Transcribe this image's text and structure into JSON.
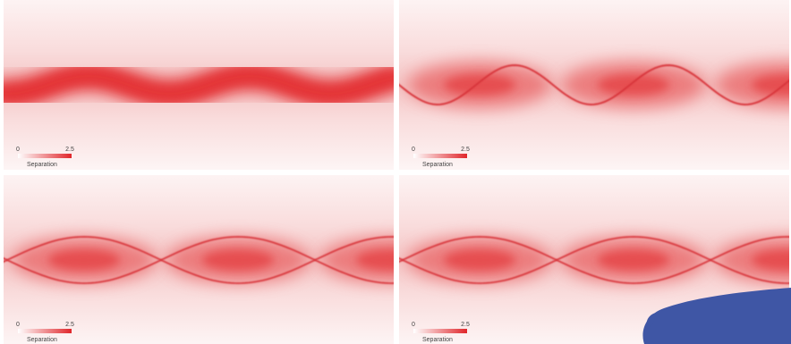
{
  "panels": [
    {
      "colorbar": {
        "min": "0",
        "max": "2.5",
        "label": "Separation"
      }
    },
    {
      "colorbar": {
        "min": "0",
        "max": "2.5",
        "label": "Separation"
      }
    },
    {
      "colorbar": {
        "min": "0",
        "max": "2.5",
        "label": "Separation"
      }
    },
    {
      "colorbar": {
        "min": "0",
        "max": "2.5",
        "label": "Separation"
      }
    }
  ]
}
